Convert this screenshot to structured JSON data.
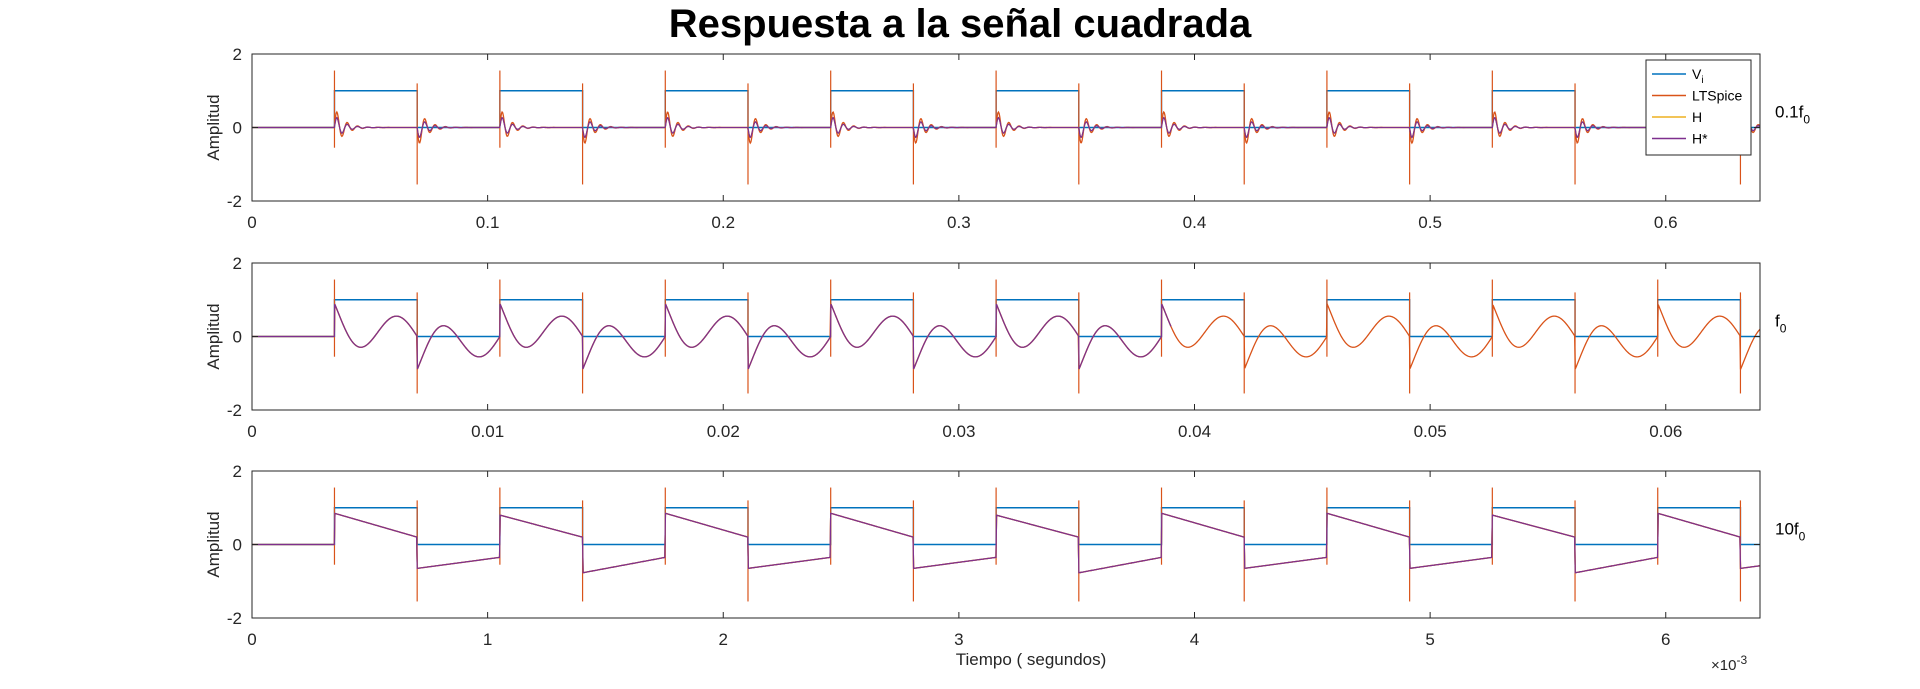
{
  "figure": {
    "title": "Respuesta a la señal cuadrada"
  },
  "legend": {
    "location": "top-right",
    "entries": [
      {
        "label": "V",
        "sub": "i",
        "color": "#0072BD"
      },
      {
        "label": "LTSpice",
        "sub": "",
        "color": "#D95319"
      },
      {
        "label": "H",
        "sub": "",
        "color": "#EDB120"
      },
      {
        "label": "H*",
        "sub": "",
        "color": "#7E2F8E"
      }
    ]
  },
  "chart_data": [
    {
      "type": "line",
      "ylabel": "Amplitud",
      "side_label": {
        "text": "0.1f",
        "sub": "0"
      },
      "xlim": [
        0,
        0.64
      ],
      "ylim": [
        -2,
        2
      ],
      "xticks": [
        0,
        0.1,
        0.2,
        0.3,
        0.4,
        0.5,
        0.6
      ],
      "xtick_labels": [
        "0",
        "0.1",
        "0.2",
        "0.3",
        "0.4",
        "0.5",
        "0.6"
      ],
      "yticks": [
        -2,
        0,
        2
      ],
      "ytick_labels": [
        "-2",
        "0",
        "2"
      ],
      "square_wave": {
        "start": 0.035,
        "period": 0.0702,
        "amplitude": 1
      },
      "series": [
        {
          "name": "V_i",
          "shape": "square",
          "color": "#0072BD"
        },
        {
          "name": "LTSpice",
          "shape": "ringing",
          "peak": 1.55,
          "settle_period_fraction": 0.05,
          "osc_cycles_per_half": 6,
          "color": "#D95319"
        },
        {
          "name": "H",
          "shape": "ringing_small",
          "color": "#EDB120"
        },
        {
          "name": "H*",
          "shape": "ringing_small",
          "color": "#7E2F8E"
        }
      ],
      "grid": false
    },
    {
      "type": "line",
      "ylabel": "Amplitud",
      "side_label": {
        "text": "f",
        "sub": "0"
      },
      "xlim": [
        0,
        0.064
      ],
      "ylim": [
        -2,
        2
      ],
      "xticks": [
        0,
        0.01,
        0.02,
        0.03,
        0.04,
        0.05,
        0.06
      ],
      "xtick_labels": [
        "0",
        "0.01",
        "0.02",
        "0.03",
        "0.04",
        "0.05",
        "0.06"
      ],
      "yticks": [
        -2,
        0,
        2
      ],
      "ytick_labels": [
        "-2",
        "0",
        "2"
      ],
      "square_wave": {
        "start": 0.0035,
        "period": 0.00702,
        "amplitude": 1
      },
      "series": [
        {
          "name": "V_i",
          "shape": "square",
          "color": "#0072BD"
        },
        {
          "name": "LTSpice",
          "shape": "damped_sine",
          "amplitude": 0.55,
          "color": "#D95319"
        },
        {
          "name": "H",
          "shape": "damped_sine",
          "amplitude": 0.55,
          "end": 0.039,
          "color": "#EDB120"
        },
        {
          "name": "H*",
          "shape": "damped_sine",
          "amplitude": 0.55,
          "end": 0.039,
          "color": "#7E2F8E"
        }
      ],
      "grid": false
    },
    {
      "type": "line",
      "ylabel": "Amplitud",
      "xlabel": "Tiempo ( segundos)",
      "x_exponent": "×10",
      "x_exponent_power": "-3",
      "side_label": {
        "text": "10f",
        "sub": "0"
      },
      "xlim": [
        0,
        6.4
      ],
      "ylim": [
        -2,
        2
      ],
      "xticks": [
        0,
        1,
        2,
        3,
        4,
        5,
        6
      ],
      "xtick_labels": [
        "0",
        "1",
        "2",
        "3",
        "4",
        "5",
        "6"
      ],
      "yticks": [
        -2,
        0,
        2
      ],
      "ytick_labels": [
        "-2",
        "0",
        "2"
      ],
      "square_wave": {
        "start": 0.35,
        "period": 0.702,
        "amplitude": 1
      },
      "series": [
        {
          "name": "V_i",
          "shape": "square",
          "color": "#0072BD"
        },
        {
          "name": "LTSpice",
          "shape": "tilt",
          "color": "#D95319"
        },
        {
          "name": "H",
          "shape": "tilt",
          "color": "#EDB120"
        },
        {
          "name": "H*",
          "shape": "tilt",
          "color": "#7E2F8E"
        }
      ],
      "grid": false
    }
  ]
}
